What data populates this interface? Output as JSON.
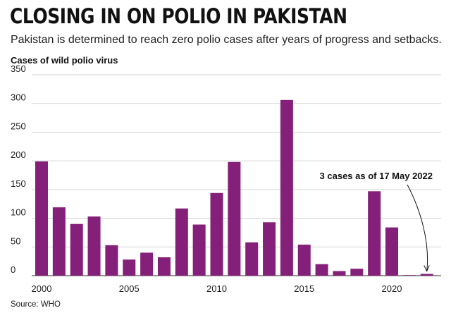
{
  "title": "CLOSING IN ON POLIO IN PAKISTAN",
  "subtitle": "Pakistan is determined to reach zero polio cases after years of progress and setbacks.",
  "source": "Source: WHO",
  "colors": {
    "bar": "#84207a",
    "grid": "#c8c8c8",
    "axis": "#555555"
  },
  "chart_data": {
    "type": "bar",
    "title": "CLOSING IN ON POLIO IN PAKISTAN",
    "ylabel": "Cases of wild polio virus",
    "xlabel": "",
    "categories": [
      2000,
      2001,
      2002,
      2003,
      2004,
      2005,
      2006,
      2007,
      2008,
      2009,
      2010,
      2011,
      2012,
      2013,
      2014,
      2015,
      2016,
      2017,
      2018,
      2019,
      2020,
      2021,
      2022
    ],
    "values": [
      199,
      119,
      90,
      103,
      53,
      28,
      40,
      32,
      117,
      89,
      144,
      198,
      58,
      93,
      306,
      54,
      20,
      8,
      12,
      147,
      84,
      1,
      3
    ],
    "ylim": [
      0,
      350
    ],
    "yticks": [
      0,
      50,
      100,
      150,
      200,
      250,
      300,
      350
    ],
    "xticks": [
      2000,
      2005,
      2010,
      2015,
      2020
    ],
    "grid": true,
    "annotation": {
      "text": "3 cases as of 17 May 2022",
      "year": 2022
    }
  }
}
